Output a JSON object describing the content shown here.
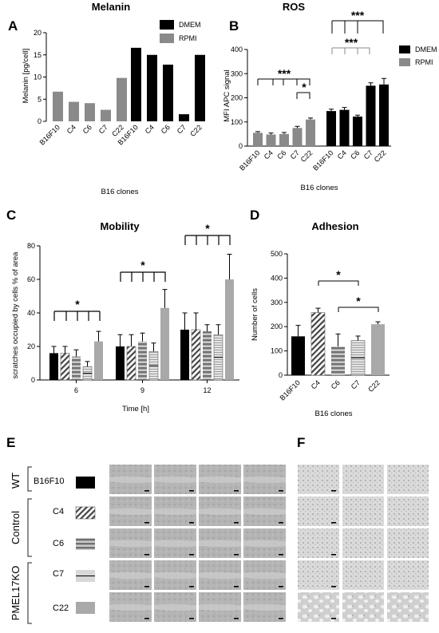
{
  "chart_data": [
    {
      "panel": "A",
      "type": "bar",
      "title": "Melanin",
      "ylabel": "Melanin [pg/cell]",
      "xlabel": "B16 clones",
      "ylim": [
        0,
        20
      ],
      "yticks": [
        "0",
        "5",
        "10",
        "15",
        "20"
      ],
      "categories": [
        "B16F10",
        "C4",
        "C6",
        "C7",
        "C22"
      ],
      "series": [
        {
          "name": "RPMI",
          "color": "#8a8a8a",
          "values": [
            6.7,
            4.4,
            4.1,
            2.6,
            9.8
          ]
        },
        {
          "name": "DMEM",
          "color": "#000000",
          "values": [
            16.6,
            15.0,
            12.8,
            1.6,
            15.0
          ]
        }
      ],
      "legend": "top-right"
    },
    {
      "panel": "B",
      "type": "bar",
      "title": "ROS",
      "ylabel": "MFI APC signal",
      "xlabel": "B16 clones",
      "ylim": [
        0,
        400
      ],
      "yticks": [
        "0",
        "100",
        "200",
        "300",
        "400"
      ],
      "categories": [
        "B16F10",
        "C4",
        "C6",
        "C7",
        "C22"
      ],
      "series": [
        {
          "name": "RPMI",
          "color": "#8a8a8a",
          "values": [
            55,
            48,
            50,
            75,
            110
          ],
          "errors": [
            5,
            6,
            6,
            7,
            6
          ]
        },
        {
          "name": "DMEM",
          "color": "#000000",
          "values": [
            145,
            150,
            122,
            250,
            255
          ],
          "errors": [
            8,
            10,
            6,
            12,
            25
          ]
        }
      ],
      "significance": [
        "***",
        "*",
        "***",
        "***"
      ],
      "legend": "top-right"
    },
    {
      "panel": "C",
      "type": "bar",
      "title": "Mobility",
      "ylabel": "scratches occupied by cells % of area",
      "xlabel": "Time [h]",
      "ylim": [
        0,
        80
      ],
      "yticks": [
        "0",
        "20",
        "40",
        "60",
        "80"
      ],
      "categories": [
        "6",
        "9",
        "12"
      ],
      "series": [
        {
          "name": "B16F10",
          "values": [
            16,
            20,
            30
          ],
          "errors": [
            4,
            7,
            10
          ]
        },
        {
          "name": "C4",
          "values": [
            16,
            20,
            30
          ],
          "errors": [
            4,
            7,
            10
          ]
        },
        {
          "name": "C6",
          "values": [
            14,
            23,
            29
          ],
          "errors": [
            4,
            5,
            4
          ]
        },
        {
          "name": "C7",
          "values": [
            8,
            17,
            27
          ],
          "errors": [
            3,
            5,
            6
          ]
        },
        {
          "name": "C22",
          "values": [
            23,
            43,
            60
          ],
          "errors": [
            6,
            11,
            15
          ]
        }
      ],
      "significance": [
        "*",
        "*",
        "*"
      ]
    },
    {
      "panel": "D",
      "type": "bar",
      "title": "Adhesion",
      "ylabel": "Number of cells",
      "xlabel": "B16 clones",
      "ylim": [
        0,
        500
      ],
      "yticks": [
        "0",
        "100",
        "200",
        "300",
        "400",
        "500"
      ],
      "categories": [
        "B16F10",
        "C4",
        "C6",
        "C7",
        "C22"
      ],
      "values": [
        160,
        258,
        118,
        143,
        210
      ],
      "errors": [
        45,
        18,
        52,
        18,
        10
      ],
      "significance": [
        "*",
        "*"
      ]
    }
  ],
  "panel_e": {
    "label": "E",
    "groups": [
      "WT",
      "Control",
      "PMEL17KO"
    ],
    "rows": [
      "B16F10",
      "C4",
      "C6",
      "C7",
      "C22"
    ]
  },
  "panel_f": {
    "label": "F"
  }
}
